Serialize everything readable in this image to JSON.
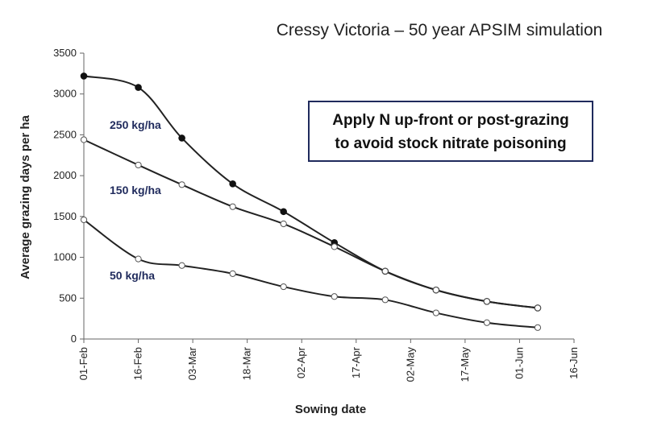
{
  "chart_data": {
    "type": "line",
    "title": "Cressy Victoria – 50 year APSIM simulation",
    "xlabel": "Sowing date",
    "ylabel": "Average grazing days per ha",
    "ylim": [
      0,
      3500
    ],
    "yticks": [
      0,
      500,
      1000,
      1500,
      2000,
      2500,
      3000,
      3500
    ],
    "xticks": [
      "01-Feb",
      "16-Feb",
      "03-Mar",
      "18-Mar",
      "02-Apr",
      "17-Apr",
      "02-May",
      "17-May",
      "01-Jun",
      "16-Jun"
    ],
    "x": [
      "01-Feb",
      "16-Feb",
      "28-Feb",
      "14-Mar",
      "28-Mar",
      "11-Apr",
      "25-Apr",
      "09-May",
      "23-May",
      "06-Jun"
    ],
    "grid": false,
    "legend": "inline labels",
    "series": [
      {
        "name": "250 kg/ha",
        "marker": "filled",
        "values": [
          3220,
          3080,
          2460,
          1900,
          1560,
          1180,
          830,
          600,
          460,
          380
        ]
      },
      {
        "name": "150 kg/ha",
        "marker": "open",
        "values": [
          2440,
          2130,
          1890,
          1620,
          1410,
          1130,
          830,
          600,
          460,
          380
        ]
      },
      {
        "name": "50 kg/ha",
        "marker": "open",
        "values": [
          1460,
          980,
          900,
          800,
          640,
          520,
          480,
          320,
          200,
          140
        ]
      }
    ],
    "annotation": {
      "lines": [
        "Apply N up-front or post-grazing",
        "to avoid stock nitrate poisoning"
      ],
      "border_color": "#1f2a5c"
    },
    "colors": {
      "line": "#222222",
      "label": "#1f2a5c"
    }
  }
}
